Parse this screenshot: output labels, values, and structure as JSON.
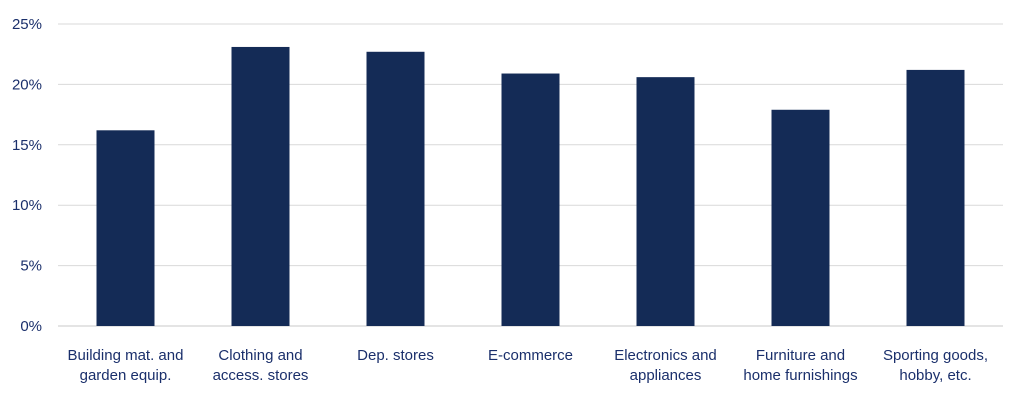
{
  "chart_data": {
    "type": "bar",
    "title": "",
    "xlabel": "",
    "ylabel": "",
    "categories": [
      [
        "Building mat. and",
        "garden equip."
      ],
      [
        "Clothing and",
        "access. stores"
      ],
      [
        "Dep. stores"
      ],
      [
        "E-commerce"
      ],
      [
        "Electronics and",
        "appliances"
      ],
      [
        "Furniture and",
        "home furnishings"
      ],
      [
        "Sporting goods,",
        "hobby, etc."
      ]
    ],
    "values": [
      16.2,
      23.1,
      22.7,
      20.9,
      20.6,
      17.9,
      21.2
    ],
    "ylim": [
      0,
      25
    ],
    "yticks": [
      0,
      5,
      10,
      15,
      20,
      25
    ],
    "ytick_labels": [
      "0%",
      "5%",
      "10%",
      "15%",
      "20%",
      "25%"
    ],
    "grid": true,
    "legend": "none",
    "colors": {
      "bar": "#142b56",
      "grid": "#d9d9d9",
      "tick_label": "#1a2f6b",
      "axis": "#c8c8c8"
    }
  }
}
